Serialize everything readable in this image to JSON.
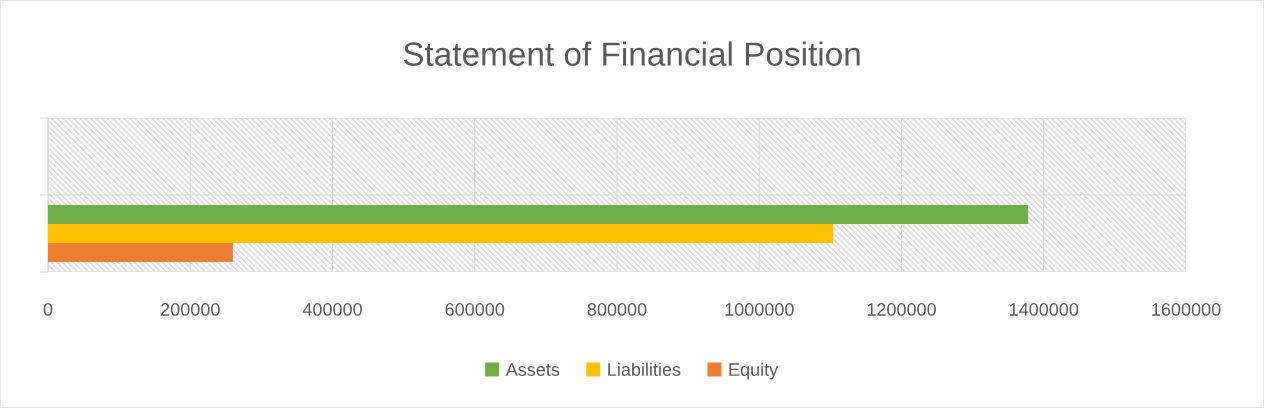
{
  "chart_data": {
    "type": "bar",
    "orientation": "horizontal",
    "title": "Statement of Financial Position",
    "categories": [
      null,
      null
    ],
    "series": [
      {
        "name": "Assets",
        "color": "#70ad47",
        "values": [
          null,
          1378000
        ]
      },
      {
        "name": "Liabilities",
        "color": "#ffc000",
        "values": [
          null,
          1104000
        ]
      },
      {
        "name": "Equity",
        "color": "#ed7d31",
        "values": [
          null,
          260000
        ]
      }
    ],
    "xlim": [
      0,
      1600000
    ],
    "xticks": [
      0,
      200000,
      400000,
      600000,
      800000,
      1000000,
      1200000,
      1400000,
      1600000
    ],
    "grid": true,
    "legend": "bottom"
  }
}
